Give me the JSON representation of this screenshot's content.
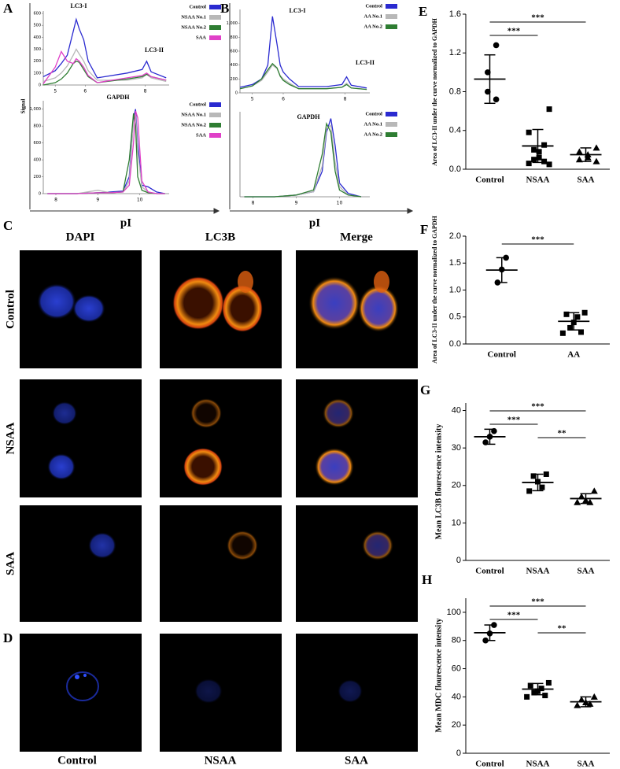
{
  "panel_labels": [
    "A",
    "B",
    "C",
    "D",
    "E",
    "F",
    "G",
    "H"
  ],
  "pI_labels": [
    "pI",
    "pI"
  ],
  "micrographs": {
    "columns": [
      "DAPI",
      "LC3B",
      "Merge"
    ],
    "rows": [
      "Control",
      "NSAA",
      "SAA"
    ],
    "d_columns": [
      "Control",
      "NSAA",
      "SAA"
    ]
  },
  "chart_data": [
    {
      "type": "line",
      "y_label": "Signal",
      "annotations": [
        "LC3-I",
        "LC3-II"
      ],
      "x": [
        4.6,
        5.0,
        5.2,
        5.4,
        5.6,
        5.7,
        5.8,
        5.95,
        6.1,
        6.4,
        7.4,
        7.9,
        8.05,
        8.2,
        8.7
      ],
      "xlim": [
        4.6,
        8.8
      ],
      "xticks": [
        5,
        6,
        8
      ],
      "ylim": [
        0,
        620
      ],
      "yticks": [
        0,
        100,
        200,
        300,
        400,
        500,
        600
      ],
      "series": [
        {
          "name": "Control",
          "color": "#2a2ad0",
          "values": [
            70,
            120,
            180,
            250,
            450,
            550,
            470,
            380,
            200,
            60,
            100,
            130,
            200,
            110,
            60
          ]
        },
        {
          "name": "NSAA No.1",
          "color": "#b8b8b8",
          "values": [
            30,
            60,
            100,
            160,
            250,
            300,
            260,
            200,
            120,
            40,
            40,
            60,
            90,
            60,
            30
          ]
        },
        {
          "name": "NSAA No.2",
          "color": "#2e7d32",
          "values": [
            0,
            20,
            50,
            100,
            180,
            200,
            190,
            130,
            70,
            20,
            50,
            70,
            90,
            70,
            40
          ]
        },
        {
          "name": "SAA",
          "color": "#e040c8",
          "values": [
            10,
            150,
            280,
            200,
            180,
            220,
            200,
            150,
            80,
            20,
            60,
            80,
            100,
            70,
            40
          ]
        }
      ]
    },
    {
      "type": "line",
      "annotations": [
        "GAPDH"
      ],
      "x": [
        7.8,
        8.5,
        9.0,
        9.3,
        9.6,
        9.75,
        9.85,
        9.9,
        9.95,
        10.05,
        10.2,
        10.4,
        10.6
      ],
      "xlim": [
        7.7,
        10.7
      ],
      "xticks": [
        8,
        9,
        10
      ],
      "ylim": [
        0,
        1100
      ],
      "yticks": [
        0,
        200,
        400,
        600,
        800,
        {
          "value": 1000,
          "label": "1,000"
        }
      ],
      "series": [
        {
          "name": "Control",
          "color": "#2a2ad0",
          "values": [
            0,
            0,
            10,
            20,
            30,
            200,
            900,
            1000,
            600,
            100,
            80,
            20,
            0
          ]
        },
        {
          "name": "NSAA No.1",
          "color": "#b8b8b8",
          "values": [
            0,
            0,
            40,
            10,
            20,
            150,
            850,
            950,
            500,
            80,
            20,
            0,
            0
          ]
        },
        {
          "name": "NSAA No.2",
          "color": "#2e7d32",
          "values": [
            0,
            0,
            10,
            10,
            20,
            400,
            950,
            800,
            200,
            40,
            10,
            0,
            0
          ]
        },
        {
          "name": "SAA",
          "color": "#e040c8",
          "values": [
            0,
            0,
            10,
            10,
            20,
            100,
            600,
            980,
            900,
            150,
            20,
            0,
            0
          ]
        }
      ]
    },
    {
      "type": "line",
      "annotations": [
        "LC3-I",
        "LC3-II"
      ],
      "x": [
        4.6,
        5.0,
        5.3,
        5.5,
        5.65,
        5.8,
        5.9,
        6.0,
        6.2,
        6.5,
        7.4,
        7.9,
        8.05,
        8.2,
        8.7
      ],
      "xlim": [
        4.6,
        8.8
      ],
      "xticks": [
        5,
        6,
        8
      ],
      "ylim": [
        0,
        1200
      ],
      "yticks": [
        0,
        200,
        400,
        600,
        800,
        {
          "value": 1000,
          "label": "1,000"
        }
      ],
      "series": [
        {
          "name": "Control",
          "color": "#2a2ad0",
          "values": [
            80,
            120,
            200,
            400,
            1100,
            700,
            400,
            300,
            200,
            90,
            90,
            120,
            230,
            110,
            70
          ]
        },
        {
          "name": "AA No.1",
          "color": "#b8b8b8",
          "values": [
            60,
            100,
            180,
            300,
            400,
            350,
            250,
            200,
            140,
            60,
            60,
            80,
            140,
            70,
            50
          ]
        },
        {
          "name": "AA No.2",
          "color": "#2e7d32",
          "values": [
            60,
            100,
            200,
            330,
            420,
            360,
            240,
            180,
            120,
            60,
            60,
            80,
            120,
            70,
            50
          ]
        }
      ]
    },
    {
      "type": "line",
      "annotations": [
        "GAPDH"
      ],
      "x": [
        7.8,
        8.5,
        9.0,
        9.4,
        9.6,
        9.7,
        9.8,
        9.9,
        10.0,
        10.2,
        10.5
      ],
      "xlim": [
        7.7,
        10.7
      ],
      "xticks": [
        8,
        9,
        10
      ],
      "ylim": [
        0,
        500
      ],
      "yticks": [],
      "series": [
        {
          "name": "Control",
          "color": "#2a2ad0",
          "values": [
            0,
            0,
            10,
            30,
            150,
            380,
            460,
            300,
            80,
            20,
            0
          ]
        },
        {
          "name": "AA No.1",
          "color": "#b8b8b8",
          "values": [
            0,
            0,
            10,
            30,
            180,
            400,
            420,
            200,
            60,
            10,
            0
          ]
        },
        {
          "name": "AA No.2",
          "color": "#2e7d32",
          "values": [
            0,
            0,
            10,
            40,
            250,
            430,
            380,
            150,
            40,
            10,
            0
          ]
        }
      ]
    },
    {
      "type": "dotplot",
      "y_label": "Area of LC3-II under the curve normalized to GAPDH",
      "categories": [
        "Control",
        "NSAA",
        "SAA"
      ],
      "markers": [
        "circle",
        "square",
        "triangle"
      ],
      "points": [
        [
          1.28,
          1.0,
          0.8,
          0.72
        ],
        [
          0.62,
          0.38,
          0.25,
          0.2,
          0.18,
          0.12,
          0.1,
          0.08,
          0.06,
          0.05
        ],
        [
          0.22,
          0.18,
          0.15,
          0.12,
          0.1,
          0.08
        ]
      ],
      "mean": [
        0.93,
        0.24,
        0.15
      ],
      "sd": [
        0.25,
        0.17,
        0.07
      ],
      "ylim": [
        0,
        1.6
      ],
      "yticks": [
        {
          "value": 0,
          "label": "0.0"
        },
        0.4,
        0.8,
        1.2,
        1.6
      ],
      "significance": [
        {
          "between": [
            "Control",
            "SAA"
          ],
          "label": "***"
        },
        {
          "between": [
            "Control",
            "NSAA"
          ],
          "label": "***"
        }
      ]
    },
    {
      "type": "dotplot",
      "y_label": "Area of LC3-II under the curve normalized to GAPDH",
      "categories": [
        "Control",
        "AA"
      ],
      "markers": [
        "circle",
        "square"
      ],
      "points": [
        [
          1.6,
          1.38,
          1.14
        ],
        [
          0.58,
          0.55,
          0.5,
          0.4,
          0.3,
          0.22,
          0.2
        ]
      ],
      "mean": [
        1.37,
        0.42
      ],
      "sd": [
        0.23,
        0.16
      ],
      "ylim": [
        0,
        2.0
      ],
      "yticks": [
        {
          "value": 0,
          "label": "0.0"
        },
        0.5,
        {
          "value": 1,
          "label": "1.0"
        },
        1.5,
        {
          "value": 2,
          "label": "2.0"
        }
      ],
      "significance": [
        {
          "between": [
            "Control",
            "AA"
          ],
          "label": "***"
        }
      ]
    },
    {
      "type": "dotplot",
      "y_label": "Mean LC3B flourescence  intensity",
      "categories": [
        "Control",
        "NSAA",
        "SAA"
      ],
      "markers": [
        "circle",
        "square",
        "triangle"
      ],
      "points": [
        [
          34.5,
          33,
          31.5
        ],
        [
          23,
          22.5,
          21,
          19.5,
          18.5
        ],
        [
          18.5,
          17,
          16,
          15.5,
          15.5
        ]
      ],
      "mean": [
        33,
        20.8,
        16.5
      ],
      "sd": [
        2,
        2.2,
        1.3
      ],
      "ylim": [
        0,
        42
      ],
      "yticks": [
        0,
        10,
        20,
        30,
        40
      ],
      "significance": [
        {
          "between": [
            "Control",
            "SAA"
          ],
          "label": "***"
        },
        {
          "between": [
            "Control",
            "NSAA"
          ],
          "label": "***"
        },
        {
          "between": [
            "NSAA",
            "SAA"
          ],
          "label": "**"
        }
      ]
    },
    {
      "type": "dotplot",
      "y_label": "Mean MDC flourescence  intensity",
      "categories": [
        "Control",
        "NSAA",
        "SAA"
      ],
      "markers": [
        "circle",
        "square",
        "triangle"
      ],
      "points": [
        [
          91,
          85,
          80
        ],
        [
          50,
          48,
          46,
          44,
          43,
          41,
          40
        ],
        [
          40,
          38,
          36,
          35,
          34
        ]
      ],
      "mean": [
        85.5,
        45.5,
        36.5
      ],
      "sd": [
        5.5,
        4,
        3.5
      ],
      "ylim": [
        0,
        110
      ],
      "yticks": [
        0,
        20,
        40,
        60,
        80,
        100
      ],
      "significance": [
        {
          "between": [
            "Control",
            "SAA"
          ],
          "label": "***"
        },
        {
          "between": [
            "Control",
            "NSAA"
          ],
          "label": "***"
        },
        {
          "between": [
            "NSAA",
            "SAA"
          ],
          "label": "**"
        }
      ]
    }
  ]
}
